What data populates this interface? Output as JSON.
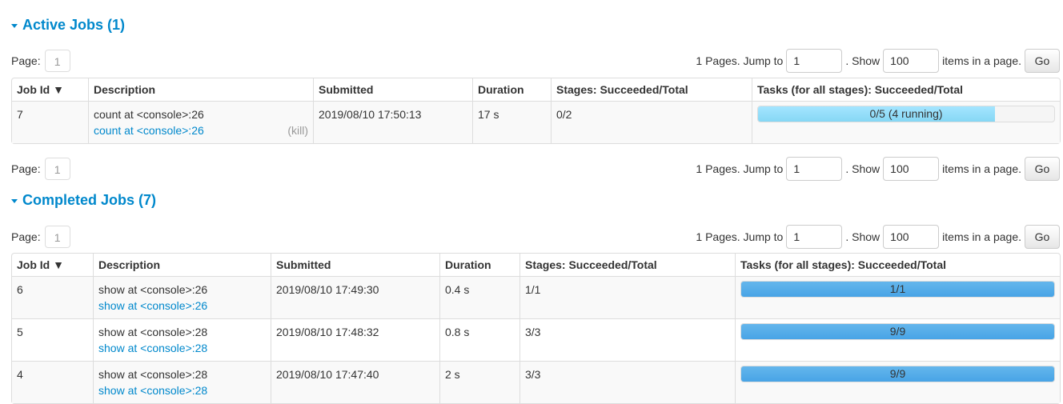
{
  "active": {
    "title": "Active Jobs (1)",
    "pager": {
      "page_label": "Page:",
      "current_page": "1",
      "pages_text": "1 Pages. Jump to",
      "jump_value": "1",
      "show_text": ". Show",
      "show_value": "100",
      "items_text": "items in a page.",
      "go_label": "Go"
    },
    "columns": [
      "Job Id ▼",
      "Description",
      "Submitted",
      "Duration",
      "Stages: Succeeded/Total",
      "Tasks (for all stages): Succeeded/Total"
    ],
    "rows": [
      {
        "id": "7",
        "desc": "count at <console>:26",
        "link": "count at <console>:26",
        "kill": "(kill)",
        "submitted": "2019/08/10 17:50:13",
        "duration": "17 s",
        "stages": "0/2",
        "tasks": "0/5 (4 running)",
        "succeeded": 0,
        "running": 4,
        "total": 5
      }
    ]
  },
  "completed": {
    "title": "Completed Jobs (7)",
    "pager": {
      "page_label": "Page:",
      "current_page": "1",
      "pages_text": "1 Pages. Jump to",
      "jump_value": "1",
      "show_text": ". Show",
      "show_value": "100",
      "items_text": "items in a page.",
      "go_label": "Go"
    },
    "columns": [
      "Job Id ▼",
      "Description",
      "Submitted",
      "Duration",
      "Stages: Succeeded/Total",
      "Tasks (for all stages): Succeeded/Total"
    ],
    "rows": [
      {
        "id": "6",
        "desc": "show at <console>:26",
        "link": "show at <console>:26",
        "submitted": "2019/08/10 17:49:30",
        "duration": "0.4 s",
        "stages": "1/1",
        "tasks": "1/1",
        "succeeded": 1,
        "total": 1
      },
      {
        "id": "5",
        "desc": "show at <console>:28",
        "link": "show at <console>:28",
        "submitted": "2019/08/10 17:48:32",
        "duration": "0.8 s",
        "stages": "3/3",
        "tasks": "9/9",
        "succeeded": 9,
        "total": 9
      },
      {
        "id": "4",
        "desc": "show at <console>:28",
        "link": "show at <console>:28",
        "submitted": "2019/08/10 17:47:40",
        "duration": "2 s",
        "stages": "3/3",
        "tasks": "9/9",
        "succeeded": 9,
        "total": 9
      }
    ]
  },
  "bottom_pager": {
    "page_label": "Page:",
    "current_page": "1",
    "pages_text": "1 Pages. Jump to",
    "jump_value": "1",
    "show_text": ". Show",
    "show_value": "100",
    "items_text": "items in a page.",
    "go_label": "Go"
  }
}
